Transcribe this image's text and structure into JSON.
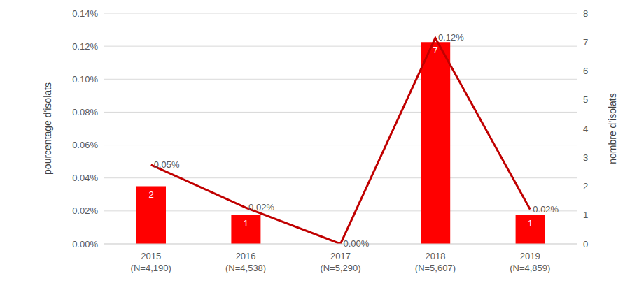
{
  "chart_data": {
    "type": "bar",
    "categories": [
      "2015\n(N=4,190)",
      "2016\n(N=4,538)",
      "2017\n(N=5,290)",
      "2018\n(N=5,607)",
      "2019\n(N=4,859)"
    ],
    "ylabel": "pourcentage d'isolats",
    "y2label": "nombre d'isolats",
    "ylim": [
      0,
      0.14
    ],
    "yticks": [
      {
        "value": 0,
        "label": "0.00%"
      },
      {
        "value": 0.02,
        "label": "0.02%"
      },
      {
        "value": 0.04,
        "label": "0.04%"
      },
      {
        "value": 0.06,
        "label": "0.06%"
      },
      {
        "value": 0.08,
        "label": "0.08%"
      },
      {
        "value": 0.1,
        "label": "0.10%"
      },
      {
        "value": 0.12,
        "label": "0.12%"
      },
      {
        "value": 0.14,
        "label": "0.14%"
      }
    ],
    "y2lim": [
      0,
      8
    ],
    "y2ticks": [
      0,
      1,
      2,
      3,
      4,
      5,
      6,
      7,
      8
    ],
    "grid": true,
    "data_labels": true,
    "series": [
      {
        "type": "bar",
        "axis": "y2",
        "color": "#ff0000",
        "values": [
          2,
          1,
          0,
          7,
          1
        ],
        "value_labels": [
          "2",
          "1",
          null,
          "7",
          "1"
        ]
      },
      {
        "type": "line",
        "axis": "y",
        "color": "#c00000",
        "marker": "none",
        "line_style": "solid",
        "values": [
          0.048,
          0.022,
          0,
          0.125,
          0.021
        ],
        "value_labels": [
          "0.05%",
          "0.02%",
          "0.00%",
          "0.12%",
          "0.02%"
        ]
      }
    ]
  }
}
